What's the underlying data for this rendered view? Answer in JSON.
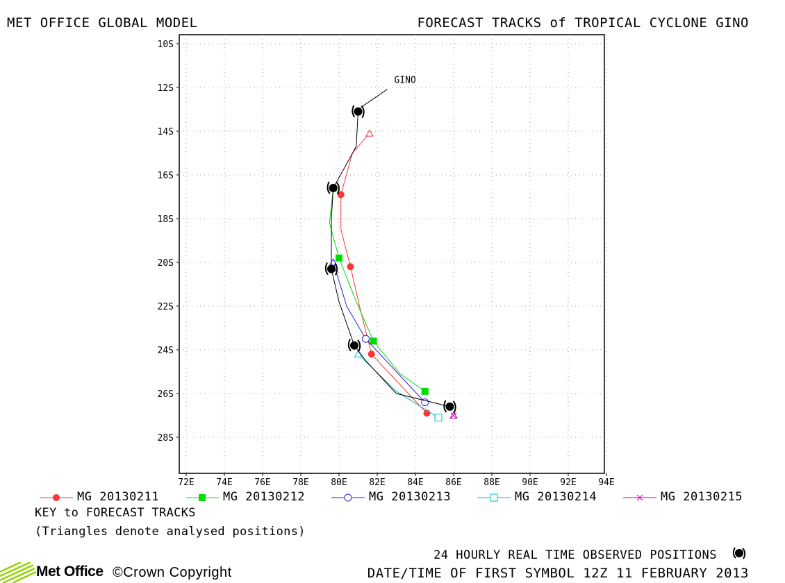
{
  "header": {
    "left_title": "MET OFFICE GLOBAL MODEL",
    "right_title": "FORECAST TRACKS of TROPICAL CYCLONE GINO"
  },
  "chart_data": {
    "type": "scatter",
    "xlim": [
      72,
      94
    ],
    "ylim": [
      -29.5,
      -9.5
    ],
    "x_ticks": [
      "72E",
      "74E",
      "76E",
      "78E",
      "80E",
      "82E",
      "84E",
      "86E",
      "88E",
      "90E",
      "92E",
      "94E"
    ],
    "y_ticks": [
      "10S",
      "12S",
      "14S",
      "16S",
      "18S",
      "20S",
      "22S",
      "24S",
      "26S",
      "28S"
    ],
    "grid": true,
    "storm_label": "GINO",
    "observed_track": {
      "marks": [
        [
          81.0,
          -13.1
        ],
        [
          79.7,
          -16.6
        ],
        [
          79.6,
          -20.3
        ],
        [
          80.8,
          -23.8
        ],
        [
          85.8,
          -26.6
        ]
      ],
      "line": [
        [
          81.0,
          -13.1
        ],
        [
          80.9,
          -14.7
        ],
        [
          79.7,
          -16.6
        ],
        [
          79.6,
          -18.0
        ],
        [
          79.6,
          -20.3
        ],
        [
          80.0,
          -21.8
        ],
        [
          80.8,
          -23.8
        ],
        [
          81.4,
          -24.5
        ],
        [
          83.0,
          -26.0
        ],
        [
          85.8,
          -26.6
        ]
      ]
    },
    "series": [
      {
        "name": "MG 20130211",
        "color": "#ff3333",
        "marker": "filled-circle",
        "analysed": [
          81.6,
          -14.1
        ],
        "points": [
          [
            81.6,
            -14.1
          ],
          [
            80.7,
            -15.0
          ],
          [
            80.1,
            -16.9
          ],
          [
            80.1,
            -18.5
          ],
          [
            80.6,
            -20.2
          ],
          [
            81.1,
            -22.1
          ],
          [
            81.7,
            -24.2
          ],
          [
            83.2,
            -25.6
          ],
          [
            84.6,
            -26.9
          ]
        ]
      },
      {
        "name": "MG 20130212",
        "color": "#00dd00",
        "marker": "filled-square",
        "analysed": [
          79.7,
          -16.6
        ],
        "points": [
          [
            79.7,
            -16.6
          ],
          [
            79.5,
            -18.2
          ],
          [
            80.0,
            -19.8
          ],
          [
            80.9,
            -21.8
          ],
          [
            81.8,
            -23.6
          ],
          [
            83.2,
            -25.1
          ],
          [
            84.5,
            -25.9
          ]
        ]
      },
      {
        "name": "MG 20130213",
        "color": "#2222dd",
        "marker": "open-circle",
        "analysed": [
          79.7,
          -20.0
        ],
        "points": [
          [
            79.7,
            -20.0
          ],
          [
            80.4,
            -22.0
          ],
          [
            81.4,
            -23.5
          ],
          [
            83.0,
            -25.0
          ],
          [
            84.5,
            -26.4
          ]
        ]
      },
      {
        "name": "MG 20130214",
        "color": "#00bbbb",
        "marker": "open-square",
        "analysed": [
          81.0,
          -24.2
        ],
        "points": [
          [
            81.0,
            -24.2
          ],
          [
            83.0,
            -25.9
          ],
          [
            85.2,
            -27.1
          ]
        ]
      },
      {
        "name": "MG 20130215",
        "color": "#cc00aa",
        "marker": "cross",
        "analysed": [
          86.0,
          -27.0
        ],
        "points": [
          [
            86.0,
            -27.0
          ]
        ]
      }
    ]
  },
  "key": {
    "title": "KEY to FORECAST TRACKS",
    "note": "(Triangles denote analysed positions)"
  },
  "footer": {
    "observed_label": "24 HOURLY REAL TIME OBSERVED POSITIONS",
    "datetime": "DATE/TIME OF FIRST SYMBOL 12Z 11 FEBRUARY 2013",
    "brand": "Met Office",
    "copyright": "©Crown Copyright"
  }
}
